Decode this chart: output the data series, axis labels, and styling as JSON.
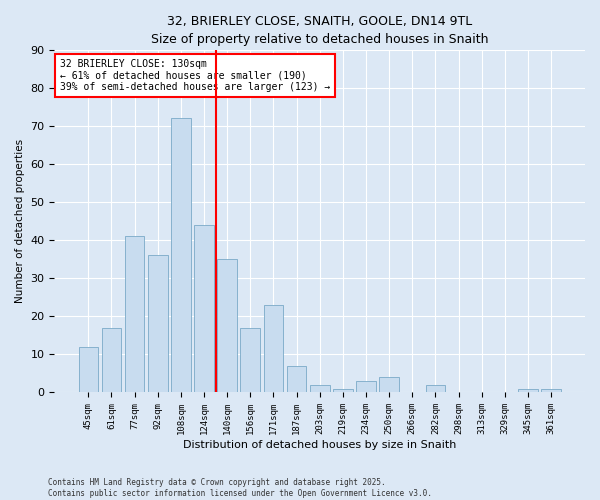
{
  "title1": "32, BRIERLEY CLOSE, SNAITH, GOOLE, DN14 9TL",
  "title2": "Size of property relative to detached houses in Snaith",
  "xlabel": "Distribution of detached houses by size in Snaith",
  "ylabel": "Number of detached properties",
  "bar_labels": [
    "45sqm",
    "61sqm",
    "77sqm",
    "92sqm",
    "108sqm",
    "124sqm",
    "140sqm",
    "156sqm",
    "171sqm",
    "187sqm",
    "203sqm",
    "219sqm",
    "234sqm",
    "250sqm",
    "266sqm",
    "282sqm",
    "298sqm",
    "313sqm",
    "329sqm",
    "345sqm",
    "361sqm"
  ],
  "bar_values": [
    12,
    17,
    41,
    36,
    72,
    44,
    35,
    17,
    23,
    7,
    2,
    1,
    3,
    4,
    0,
    2,
    0,
    0,
    0,
    1,
    1
  ],
  "bar_color": "#c8dcef",
  "bar_edge_color": "#7aaac8",
  "vline_x": 5.5,
  "vline_color": "red",
  "annotation_title": "32 BRIERLEY CLOSE: 130sqm",
  "annotation_line1": "← 61% of detached houses are smaller (190)",
  "annotation_line2": "39% of semi-detached houses are larger (123) →",
  "ylim": [
    0,
    90
  ],
  "yticks": [
    0,
    10,
    20,
    30,
    40,
    50,
    60,
    70,
    80,
    90
  ],
  "footer1": "Contains HM Land Registry data © Crown copyright and database right 2025.",
  "footer2": "Contains public sector information licensed under the Open Government Licence v3.0.",
  "bg_color": "#dce8f5",
  "plot_bg_color": "#dce8f5",
  "grid_color": "#ffffff",
  "title1_fontsize": 9,
  "title2_fontsize": 9
}
